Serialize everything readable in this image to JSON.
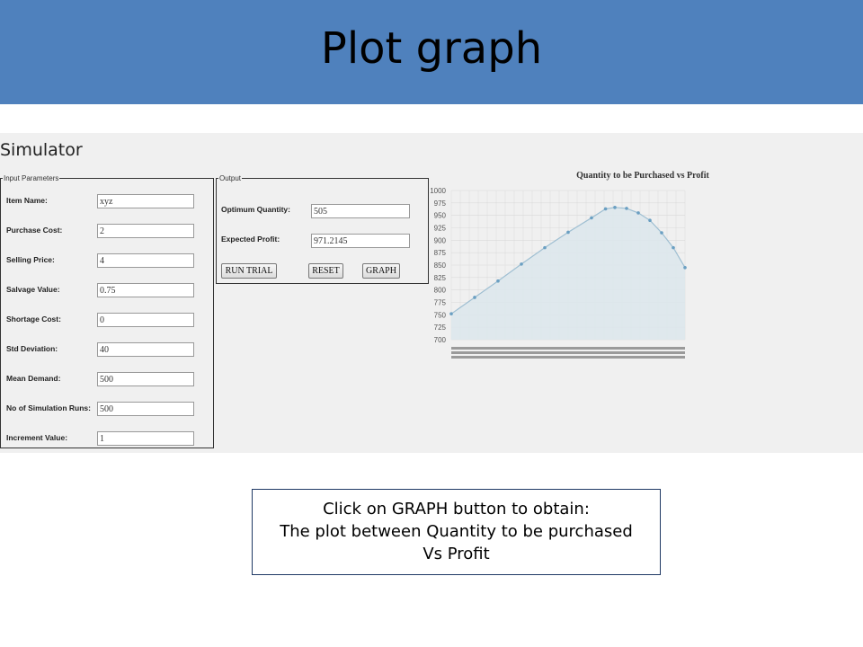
{
  "slide": {
    "title": "Plot graph",
    "caption": [
      "Click on GRAPH button to obtain:",
      "The plot between Quantity to be purchased",
      "Vs Profit"
    ]
  },
  "simulator": {
    "title": "Simulator",
    "input_legend": "Input Parameters",
    "inputs": [
      {
        "label": "Item Name:",
        "value": "xyz"
      },
      {
        "label": "Purchase Cost:",
        "value": "2"
      },
      {
        "label": "Selling Price:",
        "value": "4"
      },
      {
        "label": "Salvage Value:",
        "value": "0.75"
      },
      {
        "label": "Shortage Cost:",
        "value": "0"
      },
      {
        "label": "Std Deviation:",
        "value": "40"
      },
      {
        "label": "Mean Demand:",
        "value": "500"
      },
      {
        "label": "No of Simulation Runs:",
        "value": "500"
      },
      {
        "label": "Increment Value:",
        "value": "1"
      }
    ],
    "output_legend": "Output",
    "outputs": [
      {
        "label": "Optimum Quantity:",
        "value": "505"
      },
      {
        "label": "Expected Profit:",
        "value": "971.2145"
      }
    ],
    "buttons": {
      "run": "RUN TRIAL",
      "reset": "RESET",
      "graph": "GRAPH"
    }
  },
  "chart_data": {
    "type": "area",
    "title": "Quantity to be Purchased vs Profit",
    "ylim": [
      700,
      1000
    ],
    "yticks": [
      700,
      725,
      750,
      775,
      800,
      825,
      850,
      875,
      900,
      925,
      950,
      975,
      1000
    ],
    "grid": true,
    "points": [
      [
        0,
        752
      ],
      [
        10,
        785
      ],
      [
        20,
        818
      ],
      [
        30,
        852
      ],
      [
        40,
        885
      ],
      [
        50,
        916
      ],
      [
        60,
        945
      ],
      [
        66,
        963
      ],
      [
        70,
        966
      ],
      [
        75,
        964
      ],
      [
        80,
        955
      ],
      [
        85,
        940
      ],
      [
        90,
        915
      ],
      [
        95,
        885
      ],
      [
        100,
        845
      ]
    ],
    "colors": {
      "fill": "#dce6ec",
      "line": "#9fbfd2",
      "dot": "#6a9fc2"
    }
  }
}
